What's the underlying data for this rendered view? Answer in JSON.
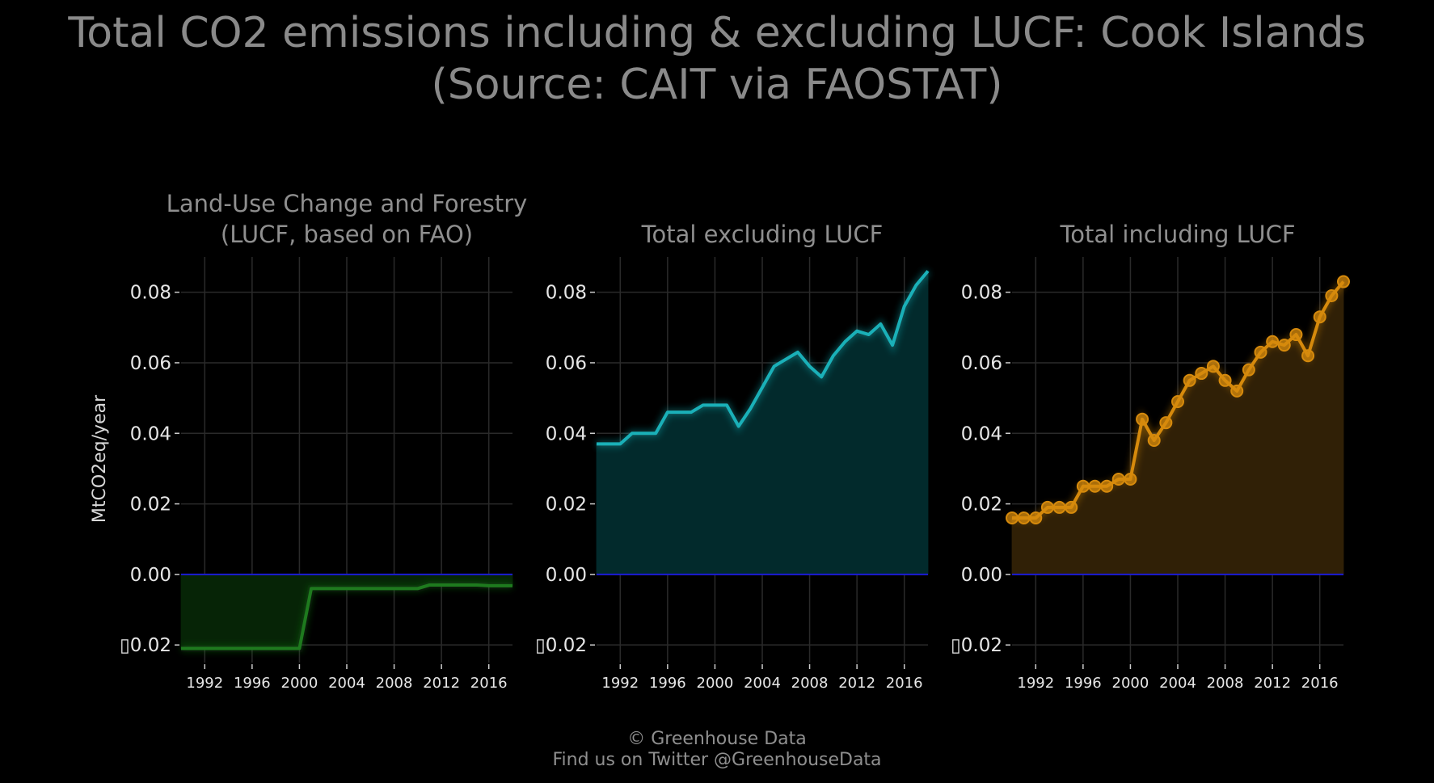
{
  "title_line1": "Total CO2 emissions including & excluding LUCF: Cook Islands",
  "title_line2": "(Source: CAIT via FAOSTAT)",
  "footer": {
    "line1": "© Greenhouse Data",
    "line2": "Find us on Twitter @GreenhouseData"
  },
  "chart_data": [
    {
      "type": "area",
      "title_line1": "Land-Use Change and Forestry",
      "title_line2": "(LUCF, based on FAO)",
      "ylabel": "MtCO2eq/year",
      "color": "#1e7a1e",
      "fill": "#062406",
      "markers": false,
      "xlim": [
        1990,
        2018
      ],
      "ylim": [
        -0.025,
        0.09
      ],
      "xticks": [
        1992,
        1996,
        2000,
        2004,
        2008,
        2012,
        2016
      ],
      "yticks": [
        -0.02,
        0.0,
        0.02,
        0.04,
        0.06,
        0.08
      ],
      "ytick_labels": [
        "▯0.02",
        "0.00",
        "0.02",
        "0.04",
        "0.06",
        "0.08"
      ],
      "grid": true,
      "x": [
        1990,
        1991,
        1992,
        1993,
        1994,
        1995,
        1996,
        1997,
        1998,
        1999,
        2000,
        2001,
        2002,
        2003,
        2004,
        2005,
        2006,
        2007,
        2008,
        2009,
        2010,
        2011,
        2012,
        2013,
        2014,
        2015,
        2016,
        2017,
        2018
      ],
      "y": [
        -0.021,
        -0.021,
        -0.021,
        -0.021,
        -0.021,
        -0.021,
        -0.021,
        -0.021,
        -0.021,
        -0.021,
        -0.021,
        -0.004,
        -0.004,
        -0.004,
        -0.004,
        -0.004,
        -0.004,
        -0.004,
        -0.004,
        -0.004,
        -0.004,
        -0.003,
        -0.003,
        -0.003,
        -0.003,
        -0.003,
        -0.0032,
        -0.0032,
        -0.0032
      ]
    },
    {
      "type": "area",
      "title_line1": "Total excluding LUCF",
      "title_line2": "",
      "ylabel": "",
      "color": "#1ab0b8",
      "fill": "#022a2c",
      "markers": false,
      "xlim": [
        1990,
        2018
      ],
      "ylim": [
        -0.025,
        0.09
      ],
      "xticks": [
        1992,
        1996,
        2000,
        2004,
        2008,
        2012,
        2016
      ],
      "yticks": [
        -0.02,
        0.0,
        0.02,
        0.04,
        0.06,
        0.08
      ],
      "ytick_labels": [
        "▯0.02",
        "0.00",
        "0.02",
        "0.04",
        "0.06",
        "0.08"
      ],
      "grid": true,
      "x": [
        1990,
        1991,
        1992,
        1993,
        1994,
        1995,
        1996,
        1997,
        1998,
        1999,
        2000,
        2001,
        2002,
        2003,
        2004,
        2005,
        2006,
        2007,
        2008,
        2009,
        2010,
        2011,
        2012,
        2013,
        2014,
        2015,
        2016,
        2017,
        2018
      ],
      "y": [
        0.037,
        0.037,
        0.037,
        0.04,
        0.04,
        0.04,
        0.046,
        0.046,
        0.046,
        0.048,
        0.048,
        0.048,
        0.042,
        0.047,
        0.053,
        0.059,
        0.061,
        0.063,
        0.059,
        0.056,
        0.062,
        0.066,
        0.069,
        0.068,
        0.071,
        0.065,
        0.076,
        0.082,
        0.086
      ]
    },
    {
      "type": "area",
      "title_line1": "Total including LUCF",
      "title_line2": "",
      "ylabel": "",
      "color": "#d68a0c",
      "fill": "#302006",
      "markers": true,
      "xlim": [
        1990,
        2018
      ],
      "ylim": [
        -0.025,
        0.09
      ],
      "xticks": [
        1992,
        1996,
        2000,
        2004,
        2008,
        2012,
        2016
      ],
      "yticks": [
        -0.02,
        0.0,
        0.02,
        0.04,
        0.06,
        0.08
      ],
      "ytick_labels": [
        "▯0.02",
        "0.00",
        "0.02",
        "0.04",
        "0.06",
        "0.08"
      ],
      "grid": true,
      "x": [
        1990,
        1991,
        1992,
        1993,
        1994,
        1995,
        1996,
        1997,
        1998,
        1999,
        2000,
        2001,
        2002,
        2003,
        2004,
        2005,
        2006,
        2007,
        2008,
        2009,
        2010,
        2011,
        2012,
        2013,
        2014,
        2015,
        2016,
        2017,
        2018
      ],
      "y": [
        0.016,
        0.016,
        0.016,
        0.019,
        0.019,
        0.019,
        0.025,
        0.025,
        0.025,
        0.027,
        0.027,
        0.044,
        0.038,
        0.043,
        0.049,
        0.055,
        0.057,
        0.059,
        0.055,
        0.052,
        0.058,
        0.063,
        0.066,
        0.065,
        0.068,
        0.062,
        0.073,
        0.079,
        0.083
      ]
    }
  ]
}
